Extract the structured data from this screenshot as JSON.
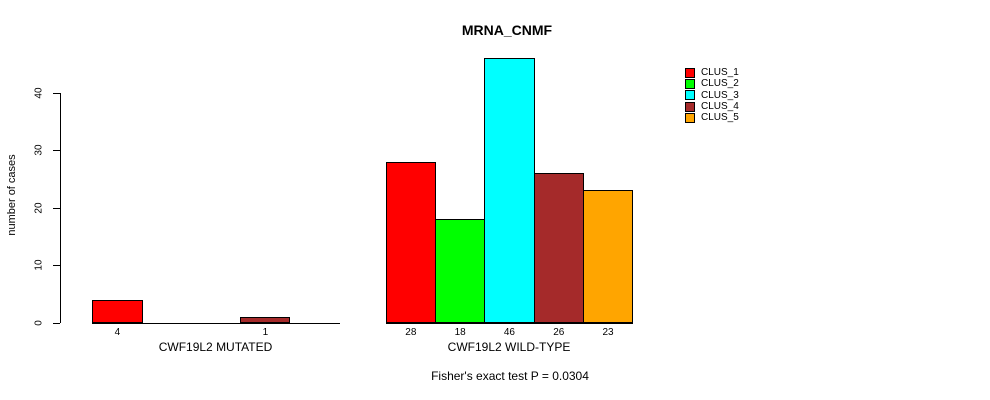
{
  "chart_data": {
    "type": "bar",
    "title": "MRNA_CNMF",
    "ylabel": "number of cases",
    "xlabel": "",
    "ylim": [
      0,
      46
    ],
    "yticks": [
      0,
      10,
      20,
      30,
      40
    ],
    "grid": false,
    "legend_position": "top-right",
    "series": [
      {
        "name": "CLUS_1",
        "color": "#FF0000"
      },
      {
        "name": "CLUS_2",
        "color": "#00FF00"
      },
      {
        "name": "CLUS_3",
        "color": "#00FFFF"
      },
      {
        "name": "CLUS_4",
        "color": "#A52A2A"
      },
      {
        "name": "CLUS_5",
        "color": "#FFA500"
      }
    ],
    "groups": [
      {
        "label": "CWF19L2 MUTATED",
        "values": [
          4,
          0,
          0,
          1,
          0
        ]
      },
      {
        "label": "CWF19L2 WILD-TYPE",
        "values": [
          28,
          18,
          46,
          26,
          23
        ]
      }
    ],
    "legend": {
      "entries": [
        "CLUS_1",
        "CLUS_2",
        "CLUS_3",
        "CLUS_4",
        "CLUS_5"
      ]
    },
    "annotation": "Fisher's exact test P = 0.0304",
    "bar_value_labels_shown": true
  }
}
